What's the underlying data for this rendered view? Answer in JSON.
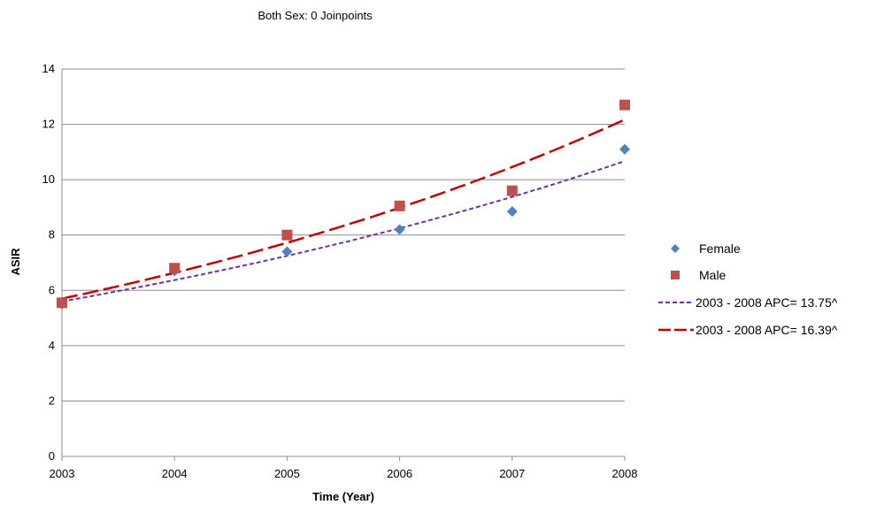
{
  "chart_data": {
    "type": "scatter",
    "title": "Both Sex: 0 Joinpoints",
    "xlabel": "Time (Year)",
    "ylabel": "ASIR",
    "x": [
      2003,
      2004,
      2005,
      2006,
      2007,
      2008
    ],
    "xlim": [
      2003,
      2008
    ],
    "ylim": [
      0,
      14
    ],
    "yticks": [
      0,
      2,
      4,
      6,
      8,
      10,
      12,
      14
    ],
    "xticks": [
      "2003",
      "2004",
      "2005",
      "2006",
      "2007",
      "2008"
    ],
    "grid": "horizontal",
    "legend_position": "right",
    "series": [
      {
        "name": "Female",
        "kind": "points",
        "marker": "diamond",
        "color": "#4f81bd",
        "values": [
          5.5,
          6.7,
          7.4,
          8.2,
          8.85,
          11.1
        ]
      },
      {
        "name": "Male",
        "kind": "points",
        "marker": "square",
        "color": "#c0504d",
        "values": [
          5.55,
          6.8,
          8.0,
          9.05,
          9.6,
          12.7
        ]
      },
      {
        "name": "2003 - 2008 APC= 13.75^",
        "kind": "line",
        "dash": "short",
        "color": "#7030a0",
        "values": [
          5.6,
          6.37,
          7.25,
          8.25,
          9.38,
          10.67
        ]
      },
      {
        "name": "2003 - 2008 APC= 16.39^",
        "kind": "line",
        "dash": "long",
        "color": "#c00000",
        "values": [
          5.7,
          6.63,
          7.72,
          8.98,
          10.45,
          12.17
        ]
      }
    ]
  }
}
